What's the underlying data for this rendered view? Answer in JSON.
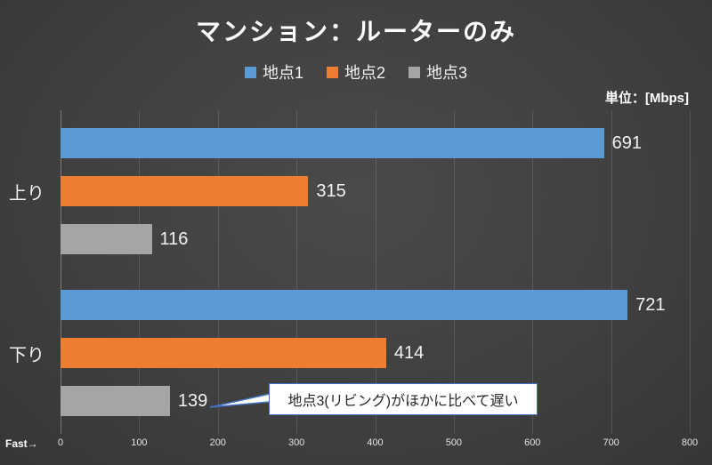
{
  "title": "マンション：ルーターのみ",
  "unit_label": "単位：[Mbps]",
  "fast_label": "Fast→",
  "annotation": "地点3(リビング)がほかに比べて遅い",
  "legend": [
    {
      "label": "地点1",
      "color": "#5B9BD5"
    },
    {
      "label": "地点2",
      "color": "#ED7D31"
    },
    {
      "label": "地点3",
      "color": "#A5A5A5"
    }
  ],
  "colors": {
    "background": "#404040",
    "accent_blue": "#4472C4",
    "text": "#F2F2F2"
  },
  "chart_data": {
    "type": "bar",
    "orientation": "horizontal",
    "title": "マンション：ルーターのみ",
    "categories": [
      "上り",
      "下り"
    ],
    "series": [
      {
        "name": "地点1",
        "color": "#5B9BD5",
        "values": [
          691,
          721
        ]
      },
      {
        "name": "地点2",
        "color": "#ED7D31",
        "values": [
          315,
          414
        ]
      },
      {
        "name": "地点3",
        "color": "#A5A5A5",
        "values": [
          116,
          139
        ]
      }
    ],
    "xlim": [
      0,
      800
    ],
    "xticks": [
      0,
      100,
      200,
      300,
      400,
      500,
      600,
      700,
      800
    ],
    "unit": "Mbps",
    "grid": true,
    "legend_position": "top",
    "annotation": "地点3(リビング)がほかに比べて遅い"
  }
}
